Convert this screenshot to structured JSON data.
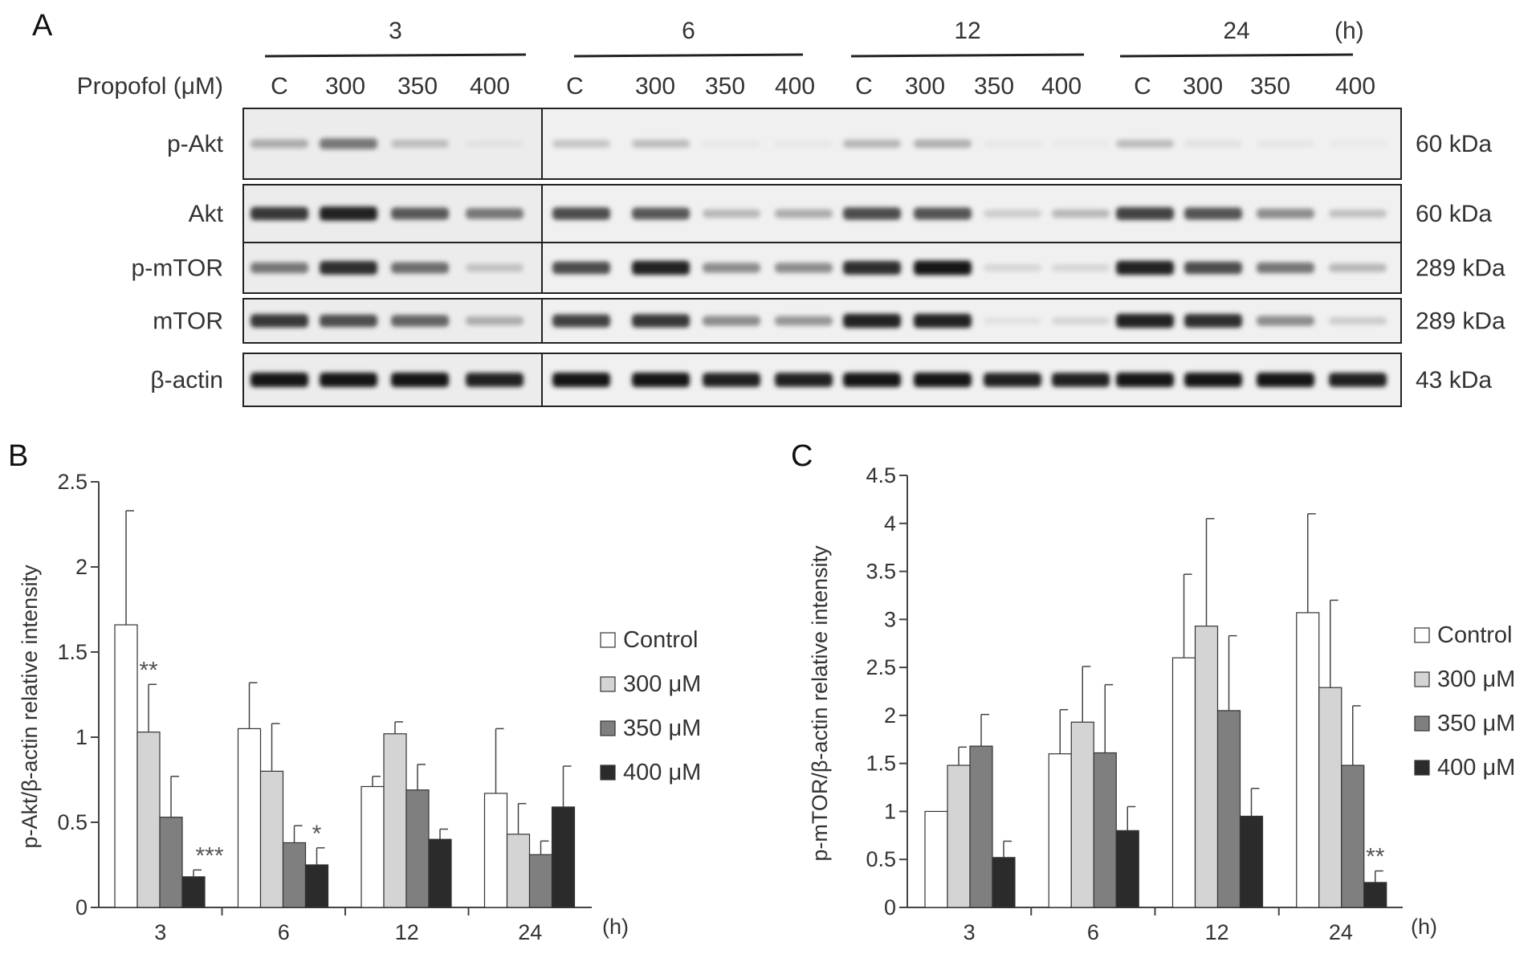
{
  "panels": {
    "a": "A",
    "b": "B",
    "c": "C"
  },
  "blot": {
    "time_groups": [
      {
        "label": "3",
        "lanes": [
          "C",
          "300",
          "350",
          "400"
        ]
      },
      {
        "label": "6",
        "lanes": [
          "C",
          "300",
          "350",
          "400"
        ]
      },
      {
        "label": "12",
        "lanes": [
          "C",
          "300",
          "350",
          "400"
        ]
      },
      {
        "label": "24",
        "lanes": [
          "C",
          "300",
          "350",
          "400"
        ]
      }
    ],
    "time_unit": "(h)",
    "treatment_label": "Propofol (μM)",
    "rows": [
      {
        "label": "p-Akt",
        "mw": "60 kDa",
        "intensity": [
          0.3,
          0.55,
          0.22,
          0.05,
          0.18,
          0.22,
          0.02,
          0.02,
          0.25,
          0.28,
          0.02,
          0.01,
          0.22,
          0.05,
          0.03,
          0.01
        ]
      },
      {
        "label": "Akt",
        "mw": "60 kDa",
        "intensity": [
          0.85,
          0.95,
          0.7,
          0.55,
          0.75,
          0.7,
          0.25,
          0.3,
          0.75,
          0.72,
          0.15,
          0.25,
          0.8,
          0.72,
          0.45,
          0.2
        ]
      },
      {
        "label": "p-mTOR",
        "mw": "289 kDa",
        "intensity": [
          0.55,
          0.9,
          0.6,
          0.2,
          0.75,
          0.95,
          0.45,
          0.45,
          0.9,
          1.0,
          0.1,
          0.1,
          0.95,
          0.75,
          0.55,
          0.25
        ]
      },
      {
        "label": "mTOR",
        "mw": "289 kDa",
        "intensity": [
          0.85,
          0.75,
          0.65,
          0.3,
          0.8,
          0.85,
          0.45,
          0.4,
          0.95,
          0.95,
          0.05,
          0.1,
          0.95,
          0.9,
          0.45,
          0.15
        ]
      },
      {
        "label": "β-actin",
        "mw": "43 kDa",
        "intensity": [
          1.0,
          1.0,
          1.0,
          0.95,
          1.0,
          1.0,
          0.95,
          0.95,
          1.0,
          1.0,
          0.95,
          0.95,
          1.0,
          1.0,
          1.0,
          0.95
        ]
      }
    ]
  },
  "chart_data": [
    {
      "type": "bar",
      "panel": "B",
      "categories": [
        "3",
        "6",
        "12",
        "24"
      ],
      "x_unit": "(h)",
      "ylabel": "p-Akt/β-actin relative intensity",
      "ylim": [
        0,
        2.5
      ],
      "yticks": [
        "0",
        "0.5",
        "1",
        "1.5",
        "2",
        "2.5"
      ],
      "series": [
        {
          "name": "Control",
          "values": [
            1.66,
            1.05,
            0.71,
            0.67
          ],
          "errors": [
            0.67,
            0.27,
            0.06,
            0.38
          ]
        },
        {
          "name": "300 μM",
          "values": [
            1.03,
            0.8,
            1.02,
            0.43
          ],
          "errors": [
            0.28,
            0.28,
            0.07,
            0.18
          ]
        },
        {
          "name": "350 μM",
          "values": [
            0.53,
            0.38,
            0.69,
            0.31
          ],
          "errors": [
            0.24,
            0.1,
            0.15,
            0.08
          ]
        },
        {
          "name": "400 μM",
          "values": [
            0.18,
            0.25,
            0.4,
            0.59
          ],
          "errors": [
            0.04,
            0.1,
            0.06,
            0.24
          ]
        }
      ],
      "annotations": [
        {
          "category": "3",
          "series": "300 μM",
          "text": "**"
        },
        {
          "category": "3",
          "series": "400 μM",
          "text": "***"
        },
        {
          "category": "6",
          "series": "400 μM",
          "text": "*"
        }
      ],
      "legend": "right",
      "grid": false
    },
    {
      "type": "bar",
      "panel": "C",
      "categories": [
        "3",
        "6",
        "12",
        "24"
      ],
      "x_unit": "(h)",
      "ylabel": "p-mTOR/β-actin relative intensity",
      "ylim": [
        0,
        4.5
      ],
      "yticks": [
        "0",
        "0.5",
        "1",
        "1.5",
        "2",
        "2.5",
        "3",
        "3.5",
        "4",
        "4.5"
      ],
      "series": [
        {
          "name": "Control",
          "values": [
            1.0,
            1.6,
            2.6,
            3.07
          ],
          "errors": [
            0.0,
            0.46,
            0.87,
            1.03
          ]
        },
        {
          "name": "300 μM",
          "values": [
            1.48,
            1.93,
            2.93,
            2.29
          ],
          "errors": [
            0.19,
            0.58,
            1.12,
            0.91
          ]
        },
        {
          "name": "350 μM",
          "values": [
            1.68,
            1.61,
            2.05,
            1.48
          ],
          "errors": [
            0.33,
            0.71,
            0.78,
            0.62
          ]
        },
        {
          "name": "400 μM",
          "values": [
            0.52,
            0.8,
            0.95,
            0.26
          ],
          "errors": [
            0.17,
            0.25,
            0.29,
            0.12
          ]
        }
      ],
      "annotations": [
        {
          "category": "24",
          "series": "400 μM",
          "text": "**"
        }
      ],
      "legend": "right",
      "grid": false
    }
  ],
  "colors": {
    "control": "#ffffff",
    "s300": "#d4d4d4",
    "s350": "#7f7f7f",
    "s400": "#2b2b2b",
    "bar_stroke": "#333333",
    "axis": "#444444"
  }
}
